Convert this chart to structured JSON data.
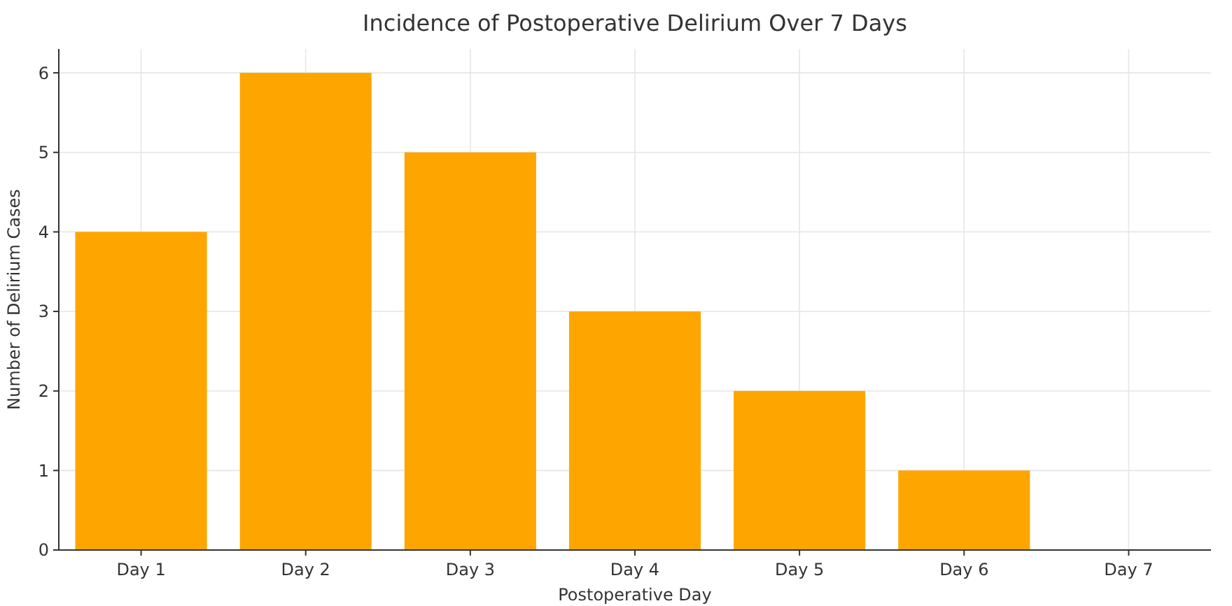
{
  "chart_data": {
    "type": "bar",
    "title": "Incidence of Postoperative Delirium Over 7 Days",
    "xlabel": "Postoperative Day",
    "ylabel": "Number of Delirium Cases",
    "categories": [
      "Day 1",
      "Day 2",
      "Day 3",
      "Day 4",
      "Day 5",
      "Day 6",
      "Day 7"
    ],
    "values": [
      4,
      6,
      5,
      3,
      2,
      1,
      0
    ],
    "color": "#ffa500",
    "ylim": [
      0,
      6.3
    ],
    "yticks": [
      0,
      1,
      2,
      3,
      4,
      5,
      6
    ],
    "grid": true
  }
}
